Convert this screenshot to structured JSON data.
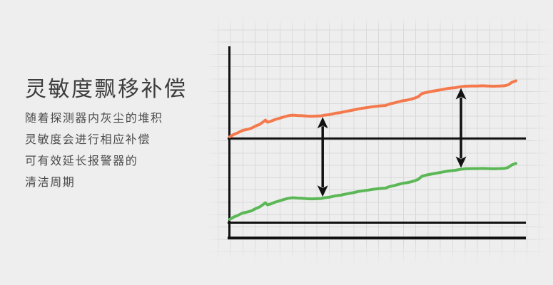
{
  "page": {
    "background_color": "#eeeeee"
  },
  "info_panel": {
    "title": "灵敏度飘移补偿",
    "title_color": "#3d3d3d",
    "text_color": "#4b4b4b",
    "lines": [
      "随着探测器内灰尘的堆积",
      "灵敏度会进行相应补偿",
      "可有效延长报警器的",
      "清洁周期"
    ]
  },
  "chart_data": {
    "type": "line",
    "title": "",
    "xlabel": "",
    "ylabel": "",
    "axes_labeled": false,
    "tick_labels": [],
    "legend": "none",
    "grid": true,
    "grid_color": "#d9d9d9",
    "axis_color": "#111111",
    "x_range_percent": [
      0,
      100
    ],
    "y_range_percent": [
      0,
      100
    ],
    "shape_points_percent": [
      [
        0,
        52.8
      ],
      [
        1.2,
        53.9
      ],
      [
        2.6,
        54.8
      ],
      [
        4.3,
        56.1
      ],
      [
        6,
        56.7
      ],
      [
        7.2,
        57.2
      ],
      [
        8.7,
        58.4
      ],
      [
        10.1,
        59.3
      ],
      [
        11.3,
        60.6
      ],
      [
        12,
        61.5
      ],
      [
        12.7,
        60.4
      ],
      [
        13.7,
        60.8
      ],
      [
        15.1,
        61.7
      ],
      [
        16.8,
        62.5
      ],
      [
        18.3,
        63.2
      ],
      [
        19.7,
        63.8
      ],
      [
        21.2,
        64.1
      ],
      [
        22.8,
        63.9
      ],
      [
        24.3,
        63.8
      ],
      [
        26,
        63.6
      ],
      [
        27.6,
        63.5
      ],
      [
        29.3,
        63.6
      ],
      [
        30.8,
        63.7
      ],
      [
        32,
        64.1
      ],
      [
        33.7,
        64.4
      ],
      [
        35.6,
        65.1
      ],
      [
        37.3,
        65.4
      ],
      [
        38.7,
        65.9
      ],
      [
        40.4,
        66.4
      ],
      [
        42.1,
        66.9
      ],
      [
        43.5,
        67.4
      ],
      [
        45.2,
        67.8
      ],
      [
        46.6,
        68.1
      ],
      [
        48.3,
        68.5
      ],
      [
        50,
        68.8
      ],
      [
        51.4,
        69
      ],
      [
        52.4,
        69.1
      ],
      [
        53.8,
        69.9
      ],
      [
        55.3,
        70.4
      ],
      [
        56.7,
        71
      ],
      [
        58.2,
        71.6
      ],
      [
        59.6,
        71.9
      ],
      [
        61.1,
        72.4
      ],
      [
        62.3,
        73
      ],
      [
        63.5,
        73.7
      ],
      [
        64.7,
        75.3
      ],
      [
        65.9,
        75.8
      ],
      [
        67.1,
        76.2
      ],
      [
        68.5,
        76.6
      ],
      [
        69.9,
        77
      ],
      [
        71.4,
        77.4
      ],
      [
        73.1,
        77.9
      ],
      [
        74.5,
        78.2
      ],
      [
        76,
        78.4
      ],
      [
        77.6,
        78.9
      ],
      [
        79.3,
        79.2
      ],
      [
        81.3,
        79.3
      ],
      [
        83.2,
        79.3
      ],
      [
        85.1,
        79.4
      ],
      [
        87,
        79.3
      ],
      [
        88.9,
        79.2
      ],
      [
        90.9,
        79.3
      ],
      [
        92.5,
        79.4
      ],
      [
        93.8,
        79.9
      ],
      [
        95,
        81.2
      ],
      [
        96.4,
        82
      ]
    ],
    "series": [
      {
        "name": "compensated-sensitivity-upper-line",
        "color": "#f47a4d",
        "y_offset_percent": 0
      },
      {
        "name": "drifting-sensitivity-lower-line",
        "color": "#5cb857",
        "y_offset_percent": -43.1
      }
    ],
    "reference_lines": [
      {
        "name": "middle-reference-line",
        "y_percent": 51.9
      },
      {
        "name": "lower-reference-line",
        "y_percent": 8.0
      },
      {
        "name": "x-axis",
        "y_percent": 0
      }
    ],
    "annotations": [
      {
        "type": "double-arrow",
        "name": "gap-arrow-left",
        "x_percent": 31.3
      },
      {
        "type": "double-arrow",
        "name": "gap-arrow-right",
        "x_percent": 77.9
      }
    ]
  }
}
